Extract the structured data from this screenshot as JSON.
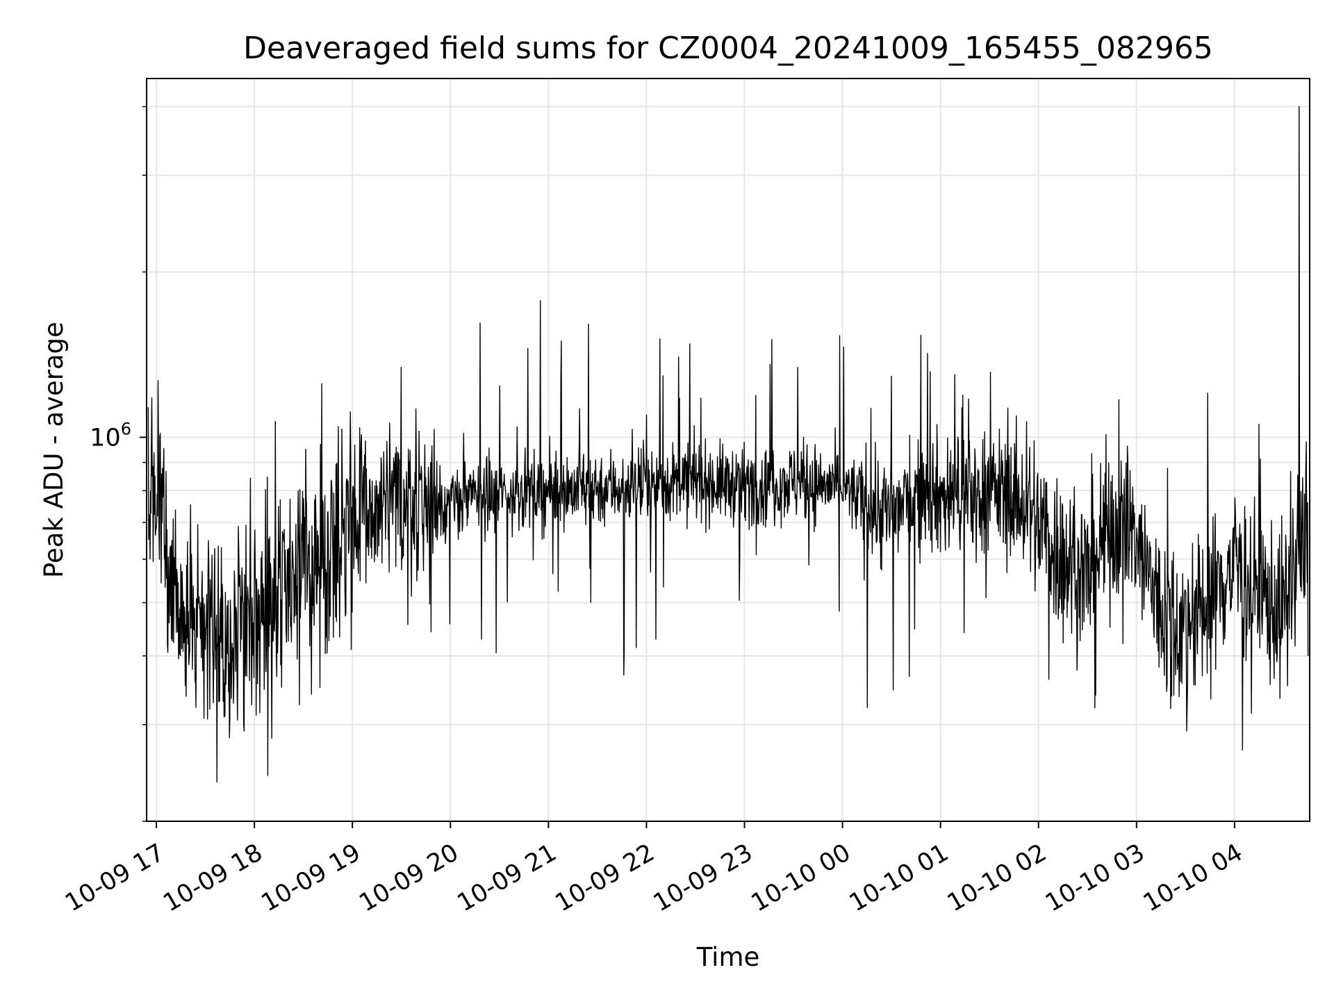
{
  "chart_data": {
    "type": "line",
    "title": "Deaveraged field sums for CZ0004_20241009_165455_082965",
    "xlabel": "Time",
    "ylabel": "Peak ADU - average",
    "y_scale": "log",
    "ylim": [
      200000,
      4500000
    ],
    "y_tick_labels": [
      {
        "base": "10",
        "exp": "6",
        "value": 1000000
      }
    ],
    "y_minor_ticks": [
      200000,
      300000,
      400000,
      500000,
      600000,
      700000,
      800000,
      900000,
      2000000,
      3000000,
      4000000
    ],
    "xlim": [
      "2024-10-09 16:54",
      "2024-10-10 04:46"
    ],
    "x_tick_labels": [
      "10-09 17",
      "10-09 18",
      "10-09 19",
      "10-09 20",
      "10-09 21",
      "10-09 22",
      "10-09 23",
      "10-10 00",
      "10-10 01",
      "10-10 02",
      "10-10 03",
      "10-10 04"
    ],
    "grid": true,
    "line_color": "#000000",
    "grid_color": "#e6e6e6",
    "series": [
      {
        "x": [
          "2024-10-09 16:55",
          "2024-10-09 17:00",
          "2024-10-09 17:05",
          "2024-10-09 17:10",
          "2024-10-09 17:15",
          "2024-10-09 17:20",
          "2024-10-09 17:30",
          "2024-10-09 17:40",
          "2024-10-09 17:50",
          "2024-10-09 18:00",
          "2024-10-09 18:15",
          "2024-10-09 18:30",
          "2024-10-09 18:45",
          "2024-10-09 19:00",
          "2024-10-09 19:15",
          "2024-10-09 19:30",
          "2024-10-09 19:45",
          "2024-10-09 20:00",
          "2024-10-09 20:30",
          "2024-10-09 21:00",
          "2024-10-09 21:30",
          "2024-10-09 22:00",
          "2024-10-09 22:30",
          "2024-10-09 23:00",
          "2024-10-09 23:30",
          "2024-10-10 00:00",
          "2024-10-10 00:15",
          "2024-10-10 00:30",
          "2024-10-10 00:50",
          "2024-10-10 01:00",
          "2024-10-10 01:30",
          "2024-10-10 01:45",
          "2024-10-10 02:00",
          "2024-10-10 02:15",
          "2024-10-10 02:30",
          "2024-10-10 02:45",
          "2024-10-10 03:00",
          "2024-10-10 03:15",
          "2024-10-10 03:30",
          "2024-10-10 03:45",
          "2024-10-10 04:00",
          "2024-10-10 04:15",
          "2024-10-10 04:30",
          "2024-10-10 04:45"
        ],
        "y": [
          850000,
          780000,
          700000,
          560000,
          480000,
          460000,
          450000,
          470000,
          460000,
          480000,
          520000,
          560000,
          620000,
          700000,
          730000,
          760000,
          770000,
          760000,
          790000,
          800000,
          810000,
          820000,
          830000,
          820000,
          830000,
          810000,
          760000,
          720000,
          820000,
          780000,
          800000,
          780000,
          700000,
          600000,
          560000,
          700000,
          650000,
          480000,
          450000,
          500000,
          600000,
          520000,
          480000,
          680000
        ]
      }
    ]
  }
}
